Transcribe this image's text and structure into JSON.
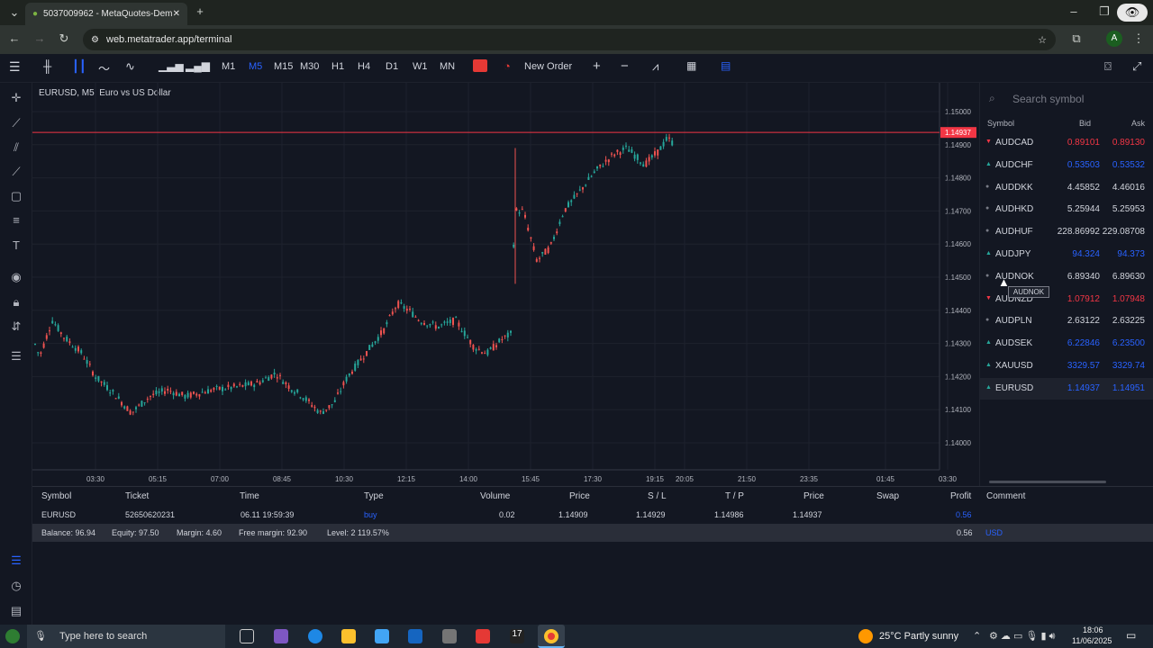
{
  "browser": {
    "tab_title": "5037009962 - MetaQuotes-Dem",
    "url": "web.metatrader.app/terminal",
    "profile_initial": "A"
  },
  "toolbar": {
    "timeframes": [
      "M1",
      "M5",
      "M15",
      "M30",
      "H1",
      "H4",
      "D1",
      "W1",
      "MN"
    ],
    "active_timeframe": "M5",
    "new_order_label": "New Order"
  },
  "chart": {
    "title": "EURUSD, M5: Euro vs US Dollar",
    "current_price_label": "1.14937",
    "price_axis": [
      "1.15000",
      "1.14900",
      "1.14800",
      "1.14700",
      "1.14600",
      "1.14500",
      "1.14400",
      "1.14300",
      "1.14200",
      "1.14100",
      "1.14000"
    ],
    "time_axis": [
      "03:30",
      "05:15",
      "07:00",
      "08:45",
      "10:30",
      "12:15",
      "14:00",
      "15:45",
      "17:30",
      "19:15",
      "20:05",
      "21:50",
      "23:35",
      "01:45",
      "03:30"
    ],
    "up_color": "#26a69a",
    "down_color": "#ef5350",
    "price_line_color": "#f23645"
  },
  "watchlist": {
    "search_placeholder": "Search symbol",
    "headers": {
      "symbol": "Symbol",
      "bid": "Bid",
      "ask": "Ask"
    },
    "rows": [
      {
        "symbol": "AUDCAD",
        "bid": "0.89101",
        "ask": "0.89130",
        "dir": "dn"
      },
      {
        "symbol": "AUDCHF",
        "bid": "0.53503",
        "ask": "0.53532",
        "dir": "up"
      },
      {
        "symbol": "AUDDKK",
        "bid": "4.45852",
        "ask": "4.46016",
        "dir": "flat"
      },
      {
        "symbol": "AUDHKD",
        "bid": "5.25944",
        "ask": "5.25953",
        "dir": "flat"
      },
      {
        "symbol": "AUDHUF",
        "bid": "228.86992",
        "ask": "229.08708",
        "dir": "flat"
      },
      {
        "symbol": "AUDJPY",
        "bid": "94.324",
        "ask": "94.373",
        "dir": "up"
      },
      {
        "symbol": "AUDNOK",
        "bid": "6.89340",
        "ask": "6.89630",
        "dir": "flat"
      },
      {
        "symbol": "AUDNZD",
        "bid": "1.07912",
        "ask": "1.07948",
        "dir": "dn"
      },
      {
        "symbol": "AUDPLN",
        "bid": "2.63122",
        "ask": "2.63225",
        "dir": "flat"
      },
      {
        "symbol": "AUDSEK",
        "bid": "6.22846",
        "ask": "6.23500",
        "dir": "up"
      },
      {
        "symbol": "XAUUSD",
        "bid": "3329.57",
        "ask": "3329.74",
        "dir": "up"
      },
      {
        "symbol": "EURUSD",
        "bid": "1.14937",
        "ask": "1.14951",
        "dir": "up"
      }
    ],
    "tooltip": "AUDNOK"
  },
  "trade": {
    "headers": [
      "Symbol",
      "Ticket",
      "Time",
      "Type",
      "Volume",
      "Price",
      "S / L",
      "T / P",
      "Price",
      "Swap",
      "Profit",
      "Comment"
    ],
    "row": {
      "symbol": "EURUSD",
      "ticket": "52650620231",
      "time": "06.11 19:59:39",
      "type": "buy",
      "volume": "0.02",
      "open_price": "1.14909",
      "sl": "1.14929",
      "tp": "1.14986",
      "price": "1.14937",
      "swap": "",
      "profit": "0.56",
      "comment": ""
    },
    "balance": {
      "balance": "Balance: 96.94",
      "equity": "Equity: 97.50",
      "margin": "Margin: 4.60",
      "free_margin": "Free margin: 92.90",
      "level": "Level: 2 119.57%",
      "total": "0.56",
      "currency": "USD"
    }
  },
  "taskbar": {
    "search_placeholder": "Type here to search",
    "weather": "25°C  Partly sunny",
    "time": "18:06",
    "date": "11/06/2025"
  }
}
